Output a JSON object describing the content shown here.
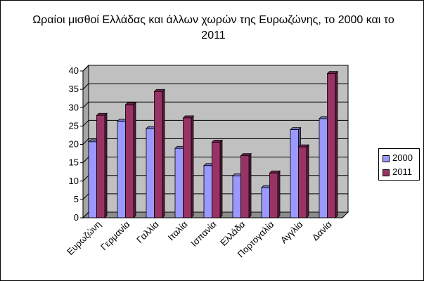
{
  "chart_data": {
    "type": "bar",
    "title": "Ωραίοι μισθοί Ελλάδας και άλλων χωρών της Ευρωζώνης, το 2000 και το 2011",
    "categories": [
      "Ευρωζώνη",
      "Γερμανία",
      "Γαλλία",
      "Ιταλία",
      "Ισπανία",
      "Ελλάδα",
      "Πορτογαλία",
      "Αγγλία",
      "Δανία"
    ],
    "series": [
      {
        "name": "2000",
        "color": "#9999ff",
        "values": [
          20.7,
          26.3,
          24.3,
          18.9,
          14.2,
          11.4,
          8.2,
          24.0,
          27.0
        ]
      },
      {
        "name": "2011",
        "color": "#993366",
        "values": [
          27.9,
          30.8,
          34.4,
          27.2,
          20.6,
          16.9,
          12.2,
          19.3,
          39.3
        ]
      }
    ],
    "ylim": [
      0,
      40
    ],
    "yticks": [
      0,
      5,
      10,
      15,
      20,
      25,
      30,
      35,
      40
    ],
    "grid": true,
    "legend_position": "right",
    "style": "3d-clustered-column"
  }
}
